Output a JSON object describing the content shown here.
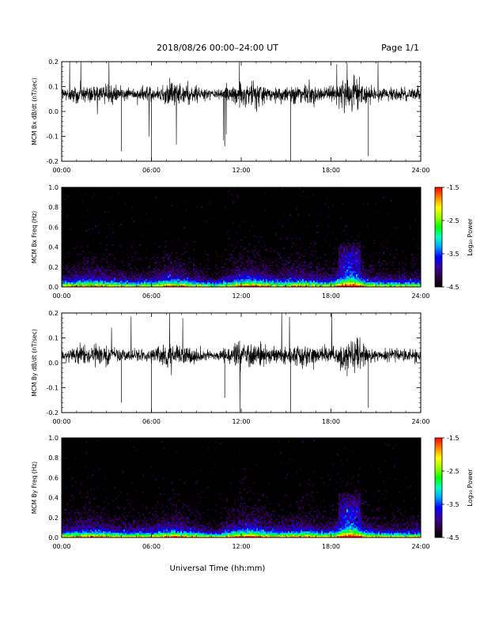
{
  "header": {
    "title": "2018/08/26  00:00–24:00 UT",
    "page": "Page 1/1"
  },
  "xlabel": "Universal Time (hh:mm)",
  "colorbar": {
    "ticks": [
      "-1.5",
      "-2.5",
      "-3.5",
      "-4.5"
    ],
    "label": "Log₁₀ Power",
    "stops": [
      "#000000",
      "#2a0040",
      "#3a00a0",
      "#0000ff",
      "#00a0ff",
      "#00ffc0",
      "#00ff00",
      "#a0ff00",
      "#ffff00",
      "#ff8000",
      "#ff0000"
    ]
  },
  "chart_data": [
    {
      "type": "line",
      "ylabel": "MCM Bx dB/dt (nT/sec)",
      "xlim": [
        0,
        24
      ],
      "ylim": [
        -0.2,
        0.2
      ],
      "xticks": [
        "00:00",
        "06:00",
        "12:00",
        "18:00",
        "24:00"
      ],
      "yticks": [
        "0.2",
        "0.1",
        "0.0",
        "-0.1",
        "-0.2"
      ],
      "baseline": 0.07,
      "series_color": "#000000"
    },
    {
      "type": "heatmap",
      "ylabel": "MCM Bx Freq (Hz)",
      "xlim": [
        0,
        24
      ],
      "ylim": [
        0.0,
        1.0
      ],
      "xticks": [
        "00:00",
        "06:00",
        "12:00",
        "18:00",
        "24:00"
      ],
      "yticks": [
        "1.0",
        "0.8",
        "0.6",
        "0.4",
        "0.2",
        "0.0"
      ],
      "zlim": [
        -4.5,
        -1.5
      ]
    },
    {
      "type": "line",
      "ylabel": "MCM By dB/dt (nT/sec)",
      "xlim": [
        0,
        24
      ],
      "ylim": [
        -0.2,
        0.2
      ],
      "xticks": [
        "00:00",
        "06:00",
        "12:00",
        "18:00",
        "24:00"
      ],
      "yticks": [
        "0.2",
        "0.1",
        "0.0",
        "-0.1",
        "-0.2"
      ],
      "baseline": 0.03,
      "series_color": "#000000"
    },
    {
      "type": "heatmap",
      "ylabel": "MCM By Freq (Hz)",
      "xlim": [
        0,
        24
      ],
      "ylim": [
        0.0,
        1.0
      ],
      "xticks": [
        "00:00",
        "06:00",
        "12:00",
        "18:00",
        "24:00"
      ],
      "yticks": [
        "1.0",
        "0.8",
        "0.6",
        "0.4",
        "0.2",
        "0.0"
      ],
      "zlim": [
        -4.5,
        -1.5
      ]
    }
  ]
}
